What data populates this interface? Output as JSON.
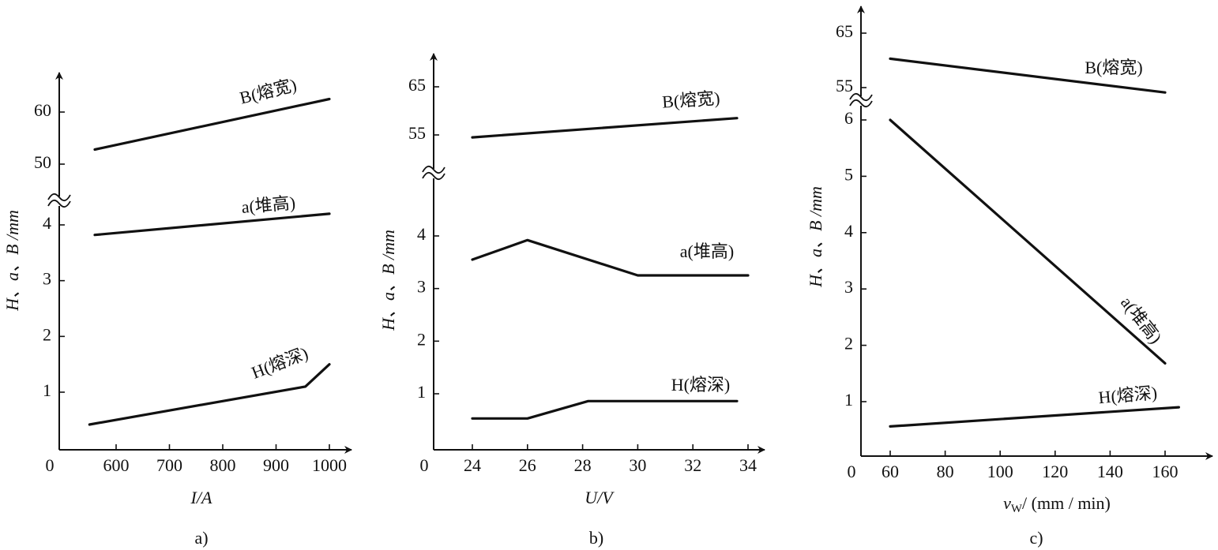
{
  "chart_data": [
    {
      "type": "line",
      "panel_label": "a)",
      "xlabel": "I/A",
      "ylabel": "H、a、B /mm",
      "origin_label": "0",
      "x_ticks": [
        600,
        700,
        800,
        900,
        1000
      ],
      "y_lower_ticks": [
        1,
        2,
        3,
        4
      ],
      "y_upper_ticks": [
        50,
        60
      ],
      "series": [
        {
          "name": "B(熔宽)",
          "segment": "upper",
          "x": [
            560,
            1000
          ],
          "y": [
            52.8,
            62.5
          ]
        },
        {
          "name": "a(堆高)",
          "segment": "lower",
          "x": [
            560,
            1000
          ],
          "y": [
            3.82,
            4.2
          ]
        },
        {
          "name": "H(熔深)",
          "segment": "lower",
          "x": [
            550,
            955,
            1000
          ],
          "y": [
            0.42,
            1.1,
            1.5
          ]
        }
      ]
    },
    {
      "type": "line",
      "panel_label": "b)",
      "xlabel": "U/V",
      "ylabel": "H、a、B /mm",
      "origin_label": "0",
      "x_ticks": [
        24,
        26,
        28,
        30,
        32,
        34
      ],
      "y_lower_ticks": [
        1,
        2,
        3,
        4
      ],
      "y_upper_ticks": [
        55,
        65
      ],
      "series": [
        {
          "name": "B(熔宽)",
          "segment": "upper",
          "x": [
            24,
            33.6
          ],
          "y": [
            54.5,
            58.5
          ]
        },
        {
          "name": "a(堆高)",
          "segment": "lower",
          "x": [
            24,
            26,
            30,
            34
          ],
          "y": [
            3.55,
            3.92,
            3.25,
            3.25
          ]
        },
        {
          "name": "H(熔深)",
          "segment": "lower",
          "x": [
            24,
            26,
            28.2,
            33.6
          ],
          "y": [
            0.53,
            0.53,
            0.86,
            0.86
          ]
        }
      ]
    },
    {
      "type": "line",
      "panel_label": "c)",
      "xlabel": "vw/ (mm / min)",
      "xlabel_main": "v",
      "xlabel_sub": "W",
      "xlabel_rest": "/ (mm / min)",
      "ylabel": "H、a、B /mm",
      "origin_label": "0",
      "x_ticks": [
        60,
        80,
        100,
        120,
        140,
        160
      ],
      "y_lower_ticks": [
        1,
        2,
        3,
        4,
        5,
        6
      ],
      "y_upper_ticks": [
        55,
        65
      ],
      "series": [
        {
          "name": "B(熔宽)",
          "segment": "upper",
          "x": [
            60,
            160
          ],
          "y": [
            60.3,
            54.1
          ]
        },
        {
          "name": "a(堆高)",
          "segment": "lower",
          "x": [
            60,
            160
          ],
          "y": [
            6.0,
            1.68
          ]
        },
        {
          "name": "H(熔深)",
          "segment": "lower",
          "x": [
            60,
            165
          ],
          "y": [
            0.56,
            0.9
          ]
        }
      ]
    }
  ]
}
